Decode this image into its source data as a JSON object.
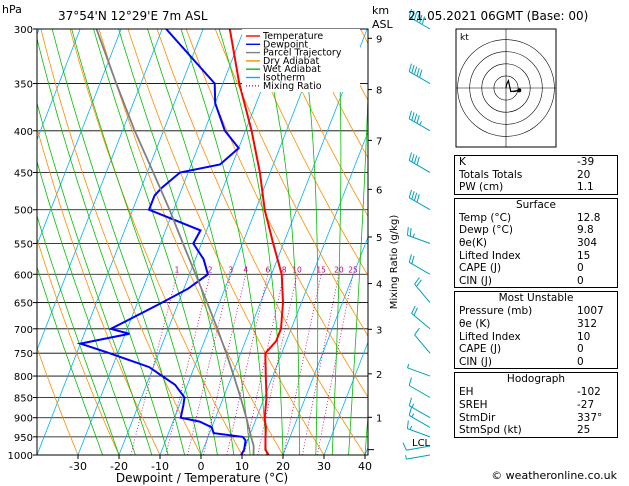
{
  "header": {
    "hpa_unit": "hPa",
    "location": "37°54'N  12°29'E  7m  ASL",
    "km_unit": "km",
    "asl_unit": "ASL",
    "datetime": "21.05.2021  06GMT  (Base: 00)"
  },
  "legend": {
    "items": [
      {
        "label": "Temperature",
        "color": "#ff0000",
        "dash": "solid"
      },
      {
        "label": "Dewpoint",
        "color": "#0000ff",
        "dash": "solid"
      },
      {
        "label": "Parcel Trajectory",
        "color": "#808080",
        "dash": "solid"
      },
      {
        "label": "Dry Adiabat",
        "color": "#ff8c00",
        "dash": "solid"
      },
      {
        "label": "Wet Adiabat",
        "color": "#00c000",
        "dash": "solid"
      },
      {
        "label": "Isotherm",
        "color": "#00b0ff",
        "dash": "solid"
      },
      {
        "label": "Mixing Ratio",
        "color": "#c00080",
        "dash": "dotted"
      }
    ]
  },
  "axes": {
    "xlabel": "Dewpoint / Temperature (°C)",
    "mixing_ratio_label": "Mixing Ratio (g/kg)",
    "x_ticks": [
      "-30",
      "-20",
      "-10",
      "0",
      "10",
      "20",
      "30",
      "40"
    ],
    "p_ticks": [
      "300",
      "350",
      "400",
      "450",
      "500",
      "550",
      "600",
      "650",
      "700",
      "750",
      "800",
      "850",
      "900",
      "950",
      "1000"
    ],
    "km_ticks": [
      "9",
      "8",
      "7",
      "6",
      "5",
      "4",
      "3",
      "2",
      "1"
    ],
    "lcl_label": "LCL",
    "mixing_ratio_values": [
      "1",
      "2",
      "3",
      "4",
      "6",
      "8",
      "10",
      "15",
      "20",
      "25"
    ]
  },
  "chart_data": {
    "type": "line",
    "chart_kind": "skew-T log-P diagram",
    "x_range_degC": [
      -35,
      40
    ],
    "p_range_hPa": [
      300,
      1000
    ],
    "grid": true,
    "series": [
      {
        "name": "Temperature",
        "color": "#ff0000",
        "points": [
          [
            1000,
            16.5
          ],
          [
            985,
            15.2
          ],
          [
            950,
            14
          ],
          [
            925,
            13.2
          ],
          [
            900,
            12
          ],
          [
            850,
            10.5
          ],
          [
            800,
            8.3
          ],
          [
            750,
            6.0
          ],
          [
            725,
            7.5
          ],
          [
            700,
            7.5
          ],
          [
            650,
            5.5
          ],
          [
            600,
            2.5
          ],
          [
            550,
            -2.5
          ],
          [
            500,
            -7.8
          ],
          [
            450,
            -12.5
          ],
          [
            400,
            -18.5
          ],
          [
            350,
            -26
          ],
          [
            300,
            -33.5
          ]
        ]
      },
      {
        "name": "Dewpoint",
        "color": "#0000ff",
        "points": [
          [
            1000,
            9.8
          ],
          [
            985,
            10
          ],
          [
            960,
            9.5
          ],
          [
            950,
            8.5
          ],
          [
            940,
            1
          ],
          [
            925,
            0
          ],
          [
            910,
            -3.5
          ],
          [
            900,
            -8.5
          ],
          [
            870,
            -9
          ],
          [
            850,
            -9.5
          ],
          [
            820,
            -13
          ],
          [
            800,
            -17
          ],
          [
            780,
            -21
          ],
          [
            750,
            -32
          ],
          [
            730,
            -40
          ],
          [
            710,
            -29
          ],
          [
            700,
            -34
          ],
          [
            675,
            -29
          ],
          [
            650,
            -24
          ],
          [
            625,
            -19
          ],
          [
            600,
            -15.5
          ],
          [
            575,
            -18
          ],
          [
            550,
            -22
          ],
          [
            530,
            -21.5
          ],
          [
            500,
            -36
          ],
          [
            480,
            -36
          ],
          [
            470,
            -35
          ],
          [
            450,
            -32
          ],
          [
            440,
            -23
          ],
          [
            420,
            -20
          ],
          [
            400,
            -25
          ],
          [
            370,
            -30
          ],
          [
            350,
            -32
          ],
          [
            300,
            -49
          ]
        ]
      },
      {
        "name": "Parcel Trajectory",
        "color": "#808080",
        "points": [
          [
            1000,
            12.8
          ],
          [
            975,
            12
          ],
          [
            950,
            10.5
          ],
          [
            900,
            7.5
          ],
          [
            850,
            4.2
          ],
          [
            800,
            0.5
          ],
          [
            750,
            -3.5
          ],
          [
            700,
            -8
          ],
          [
            650,
            -13
          ],
          [
            600,
            -18.5
          ],
          [
            550,
            -24.5
          ],
          [
            500,
            -31
          ],
          [
            450,
            -38.5
          ],
          [
            400,
            -47
          ],
          [
            350,
            -56
          ],
          [
            300,
            -66
          ]
        ]
      }
    ],
    "hodograph": {
      "label": "kt",
      "rings_kt": [
        10,
        20,
        30,
        40
      ],
      "points_uv": [
        [
          0,
          0
        ],
        [
          0.5,
          3
        ],
        [
          2,
          6
        ],
        [
          4,
          -3
        ],
        [
          11,
          -2
        ],
        [
          6,
          -3
        ]
      ]
    }
  },
  "wind_barbs": [
    {
      "p": 1000,
      "dir": 260,
      "kt": 5
    },
    {
      "p": 975,
      "dir": 260,
      "kt": 10
    },
    {
      "p": 950,
      "dir": 290,
      "kt": 15
    },
    {
      "p": 925,
      "dir": 300,
      "kt": 15
    },
    {
      "p": 900,
      "dir": 300,
      "kt": 15
    },
    {
      "p": 850,
      "dir": 300,
      "kt": 10
    },
    {
      "p": 800,
      "dir": 290,
      "kt": 5
    },
    {
      "p": 750,
      "dir": 320,
      "kt": 10
    },
    {
      "p": 700,
      "dir": 310,
      "kt": 20
    },
    {
      "p": 650,
      "dir": 320,
      "kt": 20
    },
    {
      "p": 600,
      "dir": 300,
      "kt": 20
    },
    {
      "p": 550,
      "dir": 290,
      "kt": 25
    },
    {
      "p": 500,
      "dir": 300,
      "kt": 40
    },
    {
      "p": 450,
      "dir": 300,
      "kt": 40
    },
    {
      "p": 400,
      "dir": 300,
      "kt": 45
    },
    {
      "p": 350,
      "dir": 300,
      "kt": 50
    },
    {
      "p": 300,
      "dir": 300,
      "kt": 60
    }
  ],
  "indices": [
    {
      "label": "K",
      "value": "-39"
    },
    {
      "label": "Totals Totals",
      "value": "20"
    },
    {
      "label": "PW (cm)",
      "value": "1.1"
    }
  ],
  "surface": {
    "title": "Surface",
    "rows": [
      {
        "label": "Temp (°C)",
        "value": "12.8"
      },
      {
        "label": "Dewp (°C)",
        "value": "9.8"
      },
      {
        "label": "θe(K)",
        "value": "304"
      },
      {
        "label": "Lifted Index",
        "value": "15"
      },
      {
        "label": "CAPE (J)",
        "value": "0"
      },
      {
        "label": "CIN (J)",
        "value": "0"
      }
    ]
  },
  "most_unstable": {
    "title": "Most Unstable",
    "rows": [
      {
        "label": "Pressure (mb)",
        "value": "1007"
      },
      {
        "label": "θe (K)",
        "value": "312"
      },
      {
        "label": "Lifted Index",
        "value": "10"
      },
      {
        "label": "CAPE (J)",
        "value": "0"
      },
      {
        "label": "CIN (J)",
        "value": "0"
      }
    ]
  },
  "hodograph_table": {
    "title": "Hodograph",
    "rows": [
      {
        "label": "EH",
        "value": "-102"
      },
      {
        "label": "SREH",
        "value": "-27"
      },
      {
        "label": "StmDir",
        "value": "337°"
      },
      {
        "label": "StmSpd (kt)",
        "value": "25"
      }
    ]
  },
  "copyright": "© weatheronline.co.uk"
}
